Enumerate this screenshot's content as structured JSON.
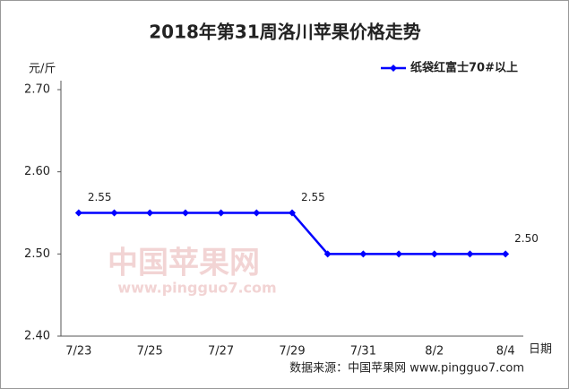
{
  "chart_data": {
    "type": "line",
    "title": "2018年第31周洛川苹果价格走势",
    "y_unit": "元/斤",
    "x_label": "日期",
    "source": "数据来源：中国苹果网 www.pingguo7.com",
    "watermark": {
      "name": "中国苹果网",
      "url": "www.pingguo7.com"
    },
    "categories": [
      "7/23",
      null,
      "7/25",
      null,
      "7/27",
      null,
      "7/29",
      null,
      "7/31",
      null,
      "8/2",
      null,
      "8/4"
    ],
    "series": [
      {
        "name": "纸袋红富士70#以上",
        "color": "#0000ff",
        "values": [
          2.55,
          2.55,
          2.55,
          2.55,
          2.55,
          2.55,
          2.55,
          2.5,
          2.5,
          2.5,
          2.5,
          2.5,
          2.5
        ],
        "value_labels": [
          "2.55",
          null,
          null,
          null,
          null,
          null,
          "2.55",
          null,
          null,
          null,
          null,
          null,
          "2.50"
        ]
      }
    ],
    "ylim": [
      2.4,
      2.7
    ],
    "yticks": [
      {
        "value": 2.4,
        "label": "2.40"
      },
      {
        "value": 2.5,
        "label": "2.50"
      },
      {
        "value": 2.6,
        "label": "2.60"
      },
      {
        "value": 2.7,
        "label": "2.70"
      }
    ],
    "legend": "top-right"
  }
}
